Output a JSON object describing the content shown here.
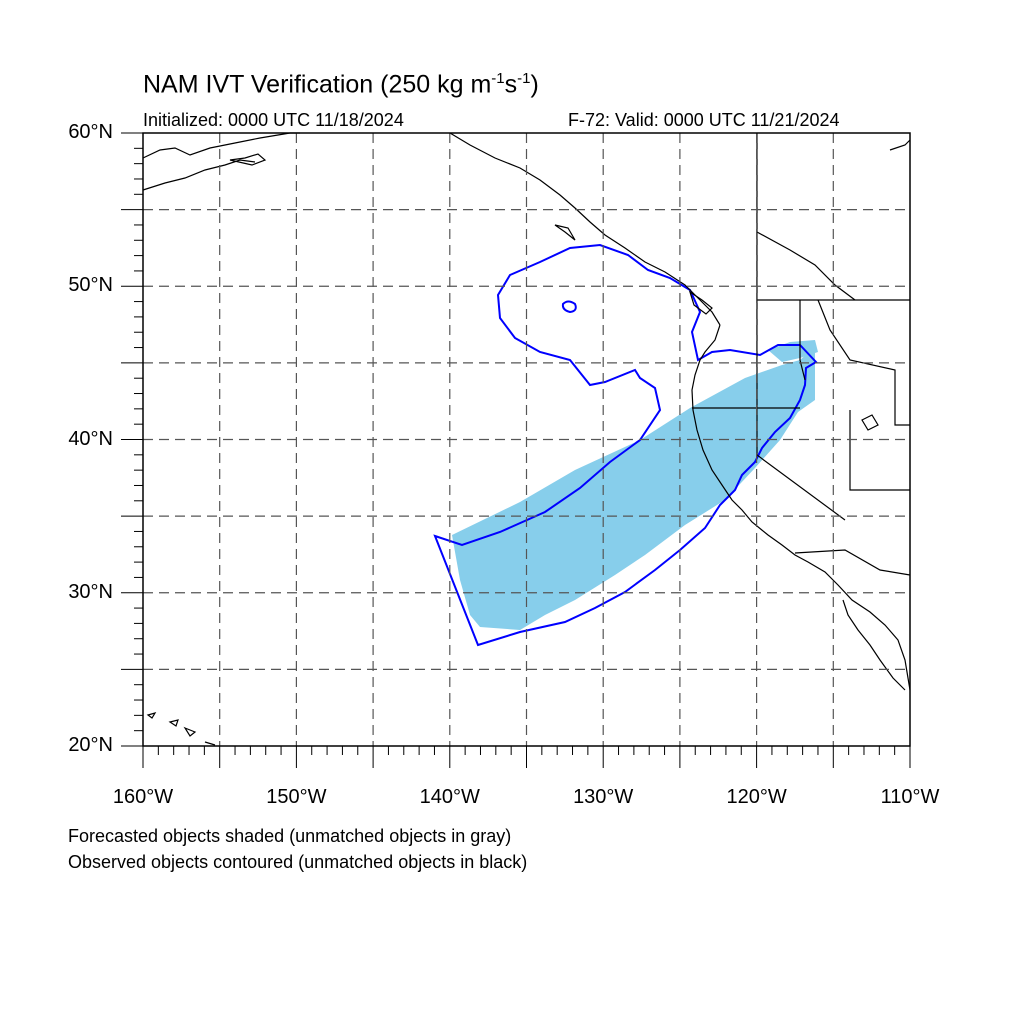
{
  "title": {
    "main_prefix": "NAM IVT Verification (250 kg m",
    "exp1": "-1",
    "mid": "s",
    "exp2": "-1",
    "suffix": ")"
  },
  "initialized": "Initialized: 0000 UTC 11/18/2024",
  "valid": "F-72: Valid: 0000 UTC 11/21/2024",
  "notes": [
    "Forecasted objects shaded (unmatched objects in gray)",
    "Observed objects contoured (unmatched objects in black)"
  ],
  "map": {
    "extent": {
      "lon": [
        -160,
        -110
      ],
      "lat": [
        20,
        60
      ]
    },
    "lat_labels": [
      "20°N",
      "30°N",
      "40°N",
      "50°N",
      "60°N"
    ],
    "lon_labels": [
      "160°W",
      "150°W",
      "140°W",
      "130°W",
      "120°W",
      "110°W"
    ],
    "grid_step_deg": 5,
    "colors": {
      "forecast_fill": "#87CEEB",
      "observed_contour": "#0000FF",
      "coastline": "#000000",
      "grid": "#555555"
    }
  }
}
